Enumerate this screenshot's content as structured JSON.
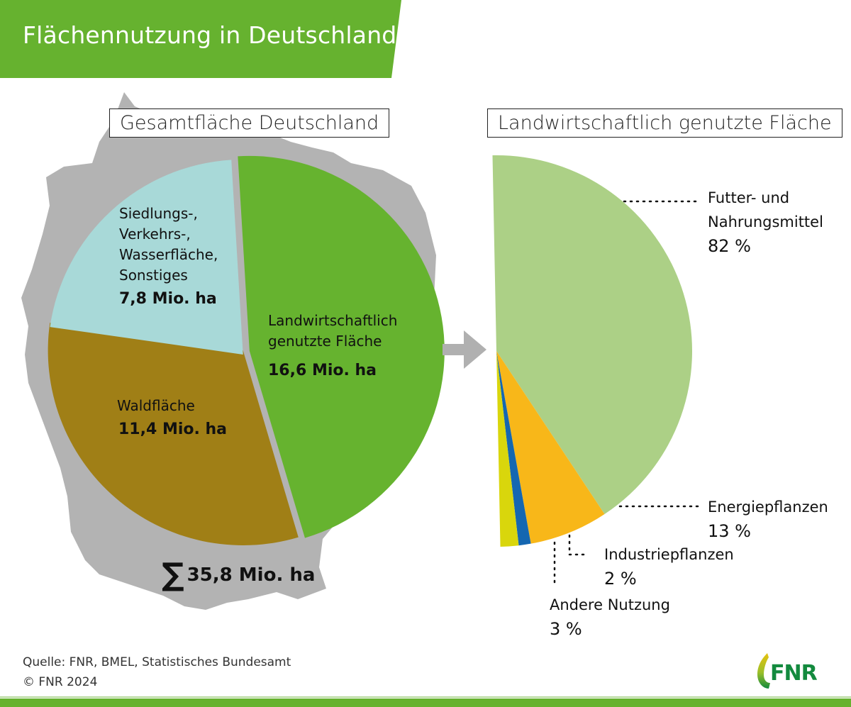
{
  "header": {
    "title": "Flächennutzung in Deutschland"
  },
  "colors": {
    "brand_green": "#66b22f",
    "map_grey": "#b3b3b3",
    "arrow_grey": "#b0b0b0"
  },
  "chart_data": [
    {
      "type": "pie",
      "title": "Gesamtfläche Deutschland",
      "unit": "Mio. ha",
      "slices": [
        {
          "label": "Landwirtschaftlich genutzte Fläche",
          "label_lines": [
            "Landwirtschaftlich",
            "genutzte Fläche"
          ],
          "value": 16.6,
          "value_label": "16,6 Mio. ha",
          "color": "#66b32f"
        },
        {
          "label": "Waldfläche",
          "label_lines": [
            "Waldfläche"
          ],
          "value": 11.4,
          "value_label": "11,4 Mio. ha",
          "color": "#a07f16"
        },
        {
          "label": "Siedlungs-, Verkehrs-, Wasserfläche, Sonstiges",
          "label_lines": [
            "Siedlungs-,",
            "Verkehrs-,",
            "Wasserfläche,",
            "Sonstiges"
          ],
          "value": 7.8,
          "value_label": "7,8 Mio. ha",
          "color": "#a8d9d8"
        }
      ],
      "total": 35.8,
      "total_label": "35,8 Mio. ha",
      "total_symbol": "∑"
    },
    {
      "type": "pie",
      "title": "Landwirtschaftlich genutzte Fläche",
      "unit": "%",
      "slices": [
        {
          "label": "Futter- und Nahrungsmittel",
          "label_lines": [
            "Futter- und",
            "Nahrungsmittel"
          ],
          "value": 82,
          "value_label": "82 %",
          "color": "#acd086"
        },
        {
          "label": "Energiepflanzen",
          "label_lines": [
            "Energiepflanzen"
          ],
          "value": 13,
          "value_label": "13 %",
          "color": "#f8b719"
        },
        {
          "label": "Industriepflanzen",
          "label_lines": [
            "Industriepflanzen"
          ],
          "value": 2,
          "value_label": "2 %",
          "color": "#1567b1"
        },
        {
          "label": "Andere Nutzung",
          "label_lines": [
            "Andere Nutzung"
          ],
          "value": 3,
          "value_label": "3 %",
          "color": "#d9d60c"
        }
      ]
    }
  ],
  "footer": {
    "source": "Quelle: FNR, BMEL, Statistisches Bundesamt",
    "copyright": "© FNR 2024",
    "logo_text": "FNR"
  }
}
